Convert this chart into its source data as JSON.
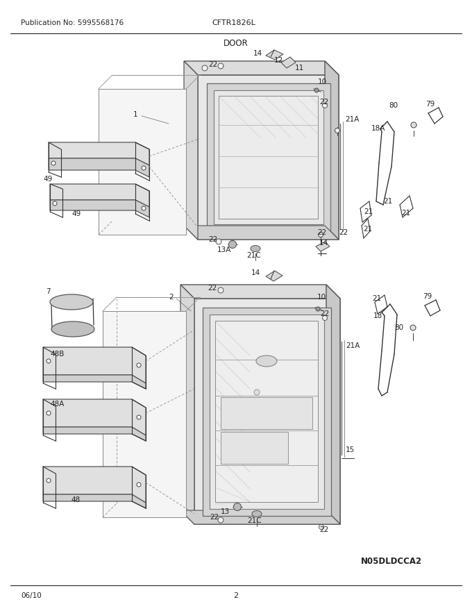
{
  "title": "DOOR",
  "publication": "Publication No: 5995568176",
  "model": "CFTR1826L",
  "diagram_code": "N05DLDCCA2",
  "date": "06/10",
  "page": "2",
  "background_color": "#ffffff",
  "line_color": "#333333",
  "text_color": "#222222",
  "figsize": [
    6.8,
    8.8
  ],
  "dpi": 100
}
